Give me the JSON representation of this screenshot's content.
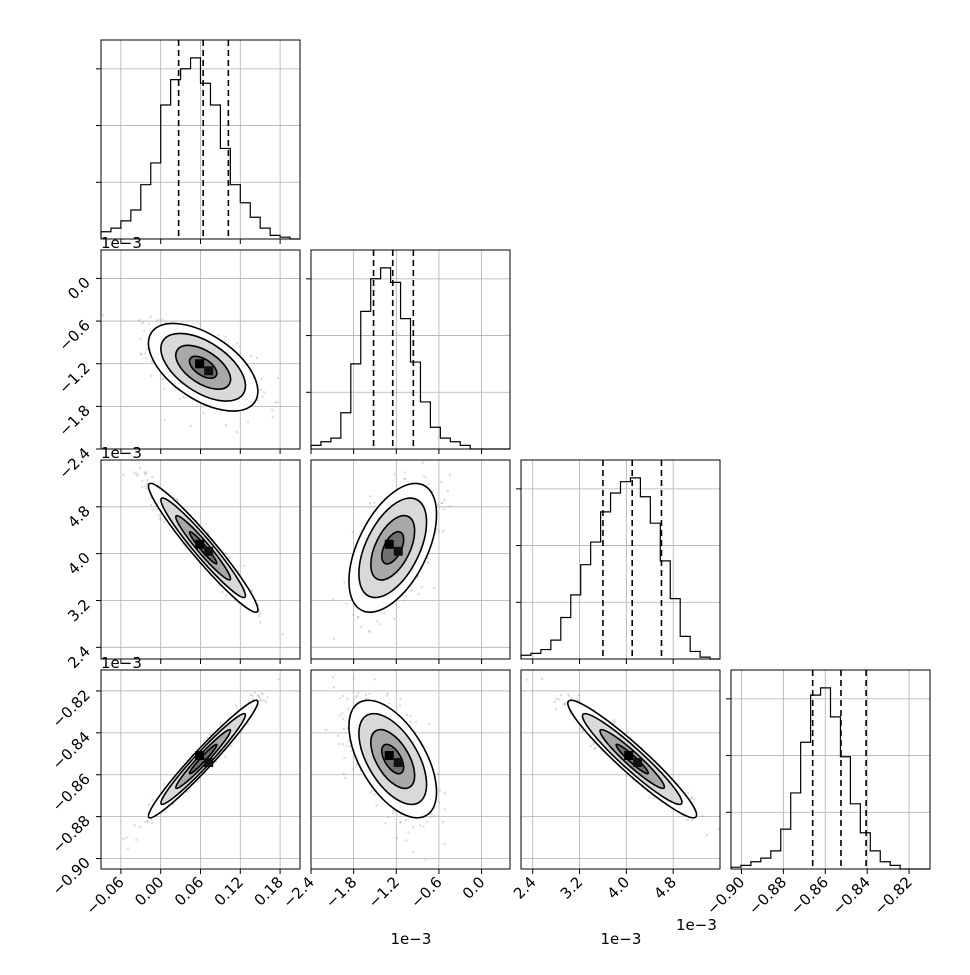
{
  "chart_data": {
    "type": "corner",
    "parameters": [
      {
        "range": [
          -0.09,
          0.21
        ],
        "ticks": [
          -0.06,
          0.0,
          0.06,
          0.12,
          0.18
        ],
        "tick_labels": [
          "−0.06",
          "0.00",
          "0.06",
          "0.12",
          "0.18"
        ],
        "quantiles": [
          0.027,
          0.064,
          0.102
        ],
        "hist": [
          0.04,
          0.06,
          0.1,
          0.16,
          0.3,
          0.42,
          0.74,
          0.88,
          0.94,
          1.0,
          0.86,
          0.74,
          0.5,
          0.3,
          0.2,
          0.12,
          0.06,
          0.02,
          0.01,
          0.0
        ],
        "axis_offset": ""
      },
      {
        "range": [
          -2.4,
          0.4
        ],
        "ticks": [
          -2.4,
          -1.8,
          -1.2,
          -0.6,
          0.0
        ],
        "tick_labels": [
          "−2.4",
          "−1.8",
          "−1.2",
          "−0.6",
          "0.0"
        ],
        "quantiles": [
          -1.52,
          -1.25,
          -0.96
        ],
        "hist": [
          0.02,
          0.04,
          0.06,
          0.2,
          0.47,
          0.76,
          0.94,
          1.0,
          0.92,
          0.72,
          0.48,
          0.26,
          0.12,
          0.06,
          0.04,
          0.02,
          0.0,
          0.0,
          0.0,
          0.0
        ],
        "axis_offset": "1e−3"
      },
      {
        "range": [
          2.2,
          5.6
        ],
        "ticks": [
          2.4,
          3.2,
          4.0,
          4.8
        ],
        "tick_labels": [
          "2.4",
          "3.2",
          "4.0",
          "4.8"
        ],
        "quantiles": [
          3.6,
          4.1,
          4.6
        ],
        "hist": [
          0.02,
          0.03,
          0.05,
          0.1,
          0.22,
          0.34,
          0.5,
          0.62,
          0.78,
          0.88,
          0.94,
          0.96,
          0.86,
          0.72,
          0.52,
          0.32,
          0.12,
          0.04,
          0.01,
          0.0
        ],
        "axis_offset": "1e−3"
      },
      {
        "range": [
          -0.905,
          -0.81
        ],
        "ticks": [
          -0.9,
          -0.88,
          -0.86,
          -0.84,
          -0.82
        ],
        "tick_labels": [
          "−0.90",
          "−0.88",
          "−0.86",
          "−0.84",
          "−0.82"
        ],
        "quantiles": [
          -0.866,
          -0.8525,
          -0.8405
        ],
        "hist": [
          0.01,
          0.02,
          0.04,
          0.06,
          0.1,
          0.22,
          0.42,
          0.7,
          0.96,
          1.0,
          0.84,
          0.62,
          0.36,
          0.2,
          0.1,
          0.04,
          0.02,
          0.0,
          0.0,
          0.0
        ],
        "axis_offset": "1e−3"
      }
    ],
    "correlations": [
      [
        1.0,
        -0.55,
        -0.96,
        0.97
      ],
      [
        -0.55,
        1.0,
        0.52,
        -0.56
      ],
      [
        -0.96,
        0.52,
        1.0,
        -0.95
      ],
      [
        0.97,
        -0.56,
        -0.95,
        1.0
      ]
    ],
    "grid": true,
    "contour_levels": 4
  }
}
